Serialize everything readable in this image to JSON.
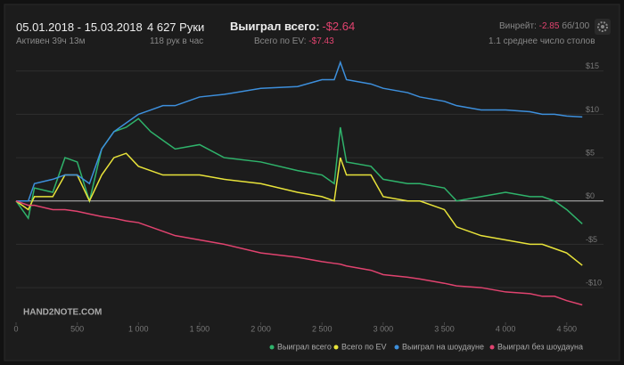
{
  "header": {
    "date_range": "05.01.2018 - 15.03.2018",
    "active": "Активен 39ч 13м",
    "hands": "4 627 Руки",
    "hands_per_hour": "118 рук в час",
    "won_label": "Выиграл всего:",
    "won_value": "-$2.64",
    "ev_label": "Всего по EV:",
    "ev_value": "-$7.43",
    "winrate_label": "Винрейт:",
    "winrate_value": "-2.85",
    "winrate_unit": "бб/100",
    "tables": "1.1 среднее число столов"
  },
  "chart_data": {
    "type": "line",
    "watermark": "HAND2NOTE.COM",
    "x": [
      0,
      100,
      150,
      300,
      400,
      500,
      600,
      700,
      800,
      900,
      1000,
      1100,
      1200,
      1300,
      1500,
      1700,
      2000,
      2300,
      2500,
      2600,
      2650,
      2700,
      2900,
      3000,
      3200,
      3300,
      3500,
      3600,
      3800,
      4000,
      4200,
      4300,
      4400,
      4500,
      4627
    ],
    "series": [
      {
        "name": "Выиграл всего",
        "color": "#2fb36b",
        "values": [
          0,
          -2,
          1.5,
          1,
          5,
          4.5,
          0,
          6,
          8,
          8.5,
          9.5,
          8,
          7,
          6,
          6.5,
          5,
          4.5,
          3.5,
          3,
          2,
          8.5,
          4.5,
          4,
          2.5,
          2,
          2,
          1.5,
          0,
          0.5,
          1,
          0.5,
          0.5,
          0,
          -1,
          -2.64
        ]
      },
      {
        "name": "Всего по EV",
        "color": "#e8e33a",
        "values": [
          0,
          -1,
          0.5,
          0.5,
          3,
          3,
          0,
          3,
          5,
          5.5,
          4,
          3.5,
          3,
          3,
          3,
          2.5,
          2,
          1,
          0.5,
          0,
          5,
          3,
          3,
          0.5,
          0,
          0,
          -1,
          -3,
          -4,
          -4.5,
          -5,
          -5,
          -5.5,
          -6,
          -7.43
        ]
      },
      {
        "name": "Выиграл на шоудауне",
        "color": "#3d8fdc",
        "values": [
          0,
          0,
          2,
          2.5,
          3,
          3,
          2,
          6,
          8,
          9,
          10,
          10.5,
          11,
          11,
          12,
          12.3,
          13,
          13.2,
          14,
          14,
          16,
          14,
          13.5,
          13,
          12.5,
          12,
          11.5,
          11,
          10.5,
          10.5,
          10.3,
          10,
          10,
          9.8,
          9.7
        ]
      },
      {
        "name": "Выиграл без шоудауна",
        "color": "#e0436f",
        "values": [
          0,
          -0.5,
          -0.5,
          -1,
          -1,
          -1.2,
          -1.5,
          -1.8,
          -2,
          -2.3,
          -2.5,
          -3,
          -3.5,
          -4,
          -4.5,
          -5,
          -6,
          -6.5,
          -7,
          -7.2,
          -7.3,
          -7.5,
          -8,
          -8.5,
          -8.8,
          -9,
          -9.5,
          -9.8,
          -10,
          -10.5,
          -10.7,
          -11,
          -11,
          -11.5,
          -12
        ]
      }
    ],
    "xlim": [
      0,
      4640
    ],
    "xticks": [
      0,
      500,
      {
        "value": 1000,
        "label": "1 000"
      },
      {
        "value": 1500,
        "label": "1 500"
      },
      {
        "value": 2000,
        "label": "2 000"
      },
      {
        "value": 2500,
        "label": "2 500"
      },
      {
        "value": 3000,
        "label": "3 000"
      },
      {
        "value": 3500,
        "label": "3 500"
      },
      {
        "value": 4000,
        "label": "4 000"
      },
      {
        "value": 4500,
        "label": "4 500"
      }
    ],
    "ylim": [
      -14,
      16
    ],
    "yticks": [
      {
        "value": 15,
        "label": "$15"
      },
      {
        "value": 10,
        "label": "$10"
      },
      {
        "value": 5,
        "label": "$5"
      },
      {
        "value": 0,
        "label": "$0"
      },
      {
        "value": -5,
        "label": "-$5"
      },
      {
        "value": -10,
        "label": "-$10"
      }
    ],
    "grid": true
  }
}
